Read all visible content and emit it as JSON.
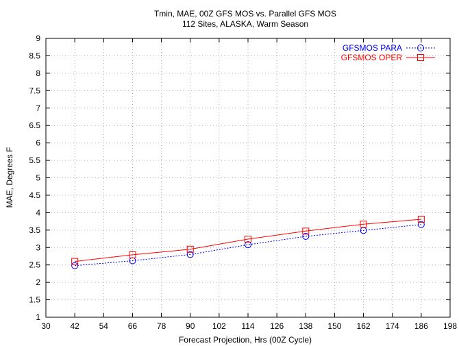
{
  "chart_data": {
    "type": "line",
    "title": "Tmin, MAE, 00Z GFS MOS vs. Parallel GFS MOS",
    "subtitle": "112 Sites, ALASKA, Warm Season",
    "xlabel": "Forecast Projection, Hrs (00Z Cycle)",
    "ylabel": "MAE, Degrees F",
    "xlim": [
      30,
      198
    ],
    "ylim": [
      1,
      9
    ],
    "x_ticks": [
      30,
      42,
      54,
      66,
      78,
      90,
      102,
      114,
      126,
      138,
      150,
      162,
      174,
      186,
      198
    ],
    "y_ticks": [
      1,
      1.5,
      2,
      2.5,
      3,
      3.5,
      4,
      4.5,
      5,
      5.5,
      6,
      6.5,
      7,
      7.5,
      8,
      8.5,
      9
    ],
    "grid": true,
    "legend_position": "top-right",
    "x": [
      42,
      66,
      90,
      114,
      138,
      162,
      186
    ],
    "series": [
      {
        "name": "GFSMOS PARA",
        "color": "#0000ff",
        "marker": "circle",
        "line": "dotted",
        "values": [
          2.48,
          2.62,
          2.8,
          3.08,
          3.32,
          3.49,
          3.66
        ]
      },
      {
        "name": "GFSMOS OPER",
        "color": "#ff0000",
        "marker": "square",
        "line": "solid",
        "values": [
          2.6,
          2.79,
          2.95,
          3.24,
          3.47,
          3.67,
          3.81
        ]
      }
    ]
  }
}
